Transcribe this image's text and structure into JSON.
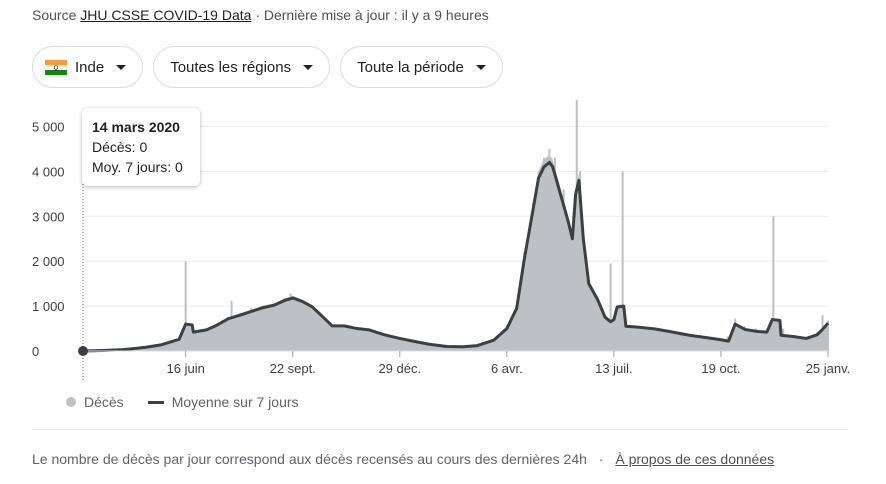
{
  "source": {
    "prefix": "Source",
    "link_text": "JHU CSSE COVID-19 Data",
    "updated": "· Dernière mise à jour : il y a 9 heures"
  },
  "filters": {
    "country": "Inde",
    "region": "Toutes les régions",
    "period": "Toute la période"
  },
  "tooltip": {
    "date": "14 mars 2020",
    "deaths": "Décès: 0",
    "avg": "Moy. 7 jours: 0"
  },
  "legend": {
    "bars": "Décès",
    "line": "Moyenne sur 7 jours"
  },
  "footer": {
    "note": "Le nombre de décès par jour correspond aux décès recensés au cours des dernières 24h",
    "separator": "·",
    "about_link": "À propos de ces données"
  },
  "colors": {
    "area": "#bdc1c6",
    "line": "#3c4043",
    "grid": "#ebebeb",
    "text": "#202124"
  },
  "chart_data": {
    "type": "area",
    "title": "",
    "xlabel": "",
    "ylabel": "",
    "ylim": [
      0,
      5500
    ],
    "y_ticks": [
      0,
      1000,
      2000,
      3000,
      4000,
      5000
    ],
    "y_tick_labels": [
      "0",
      "1 000",
      "2 000",
      "3 000",
      "4 000",
      "5 000"
    ],
    "x_ticks": [
      {
        "date": "2020-06-16",
        "label": "16 juin"
      },
      {
        "date": "2020-09-22",
        "label": "22 sept."
      },
      {
        "date": "2020-12-29",
        "label": "29 déc."
      },
      {
        "date": "2021-04-06",
        "label": "6 avr."
      },
      {
        "date": "2021-07-13",
        "label": "13 juil."
      },
      {
        "date": "2021-10-19",
        "label": "19 oct."
      },
      {
        "date": "2022-01-25",
        "label": "25 janv."
      }
    ],
    "x_start": "2020-03-14",
    "x_end": "2022-01-25",
    "grid": true,
    "legend_position": "bottom-left",
    "highlight": {
      "date": "2020-03-14",
      "deaths": 0,
      "avg": 0
    },
    "series": [
      {
        "name": "Décès",
        "kind": "bars",
        "points": [
          [
            "2020-03-14",
            0
          ],
          [
            "2020-04-01",
            15
          ],
          [
            "2020-04-20",
            40
          ],
          [
            "2020-05-10",
            90
          ],
          [
            "2020-05-25",
            150
          ],
          [
            "2020-06-10",
            320
          ],
          [
            "2020-06-16",
            2000
          ],
          [
            "2020-06-17",
            350
          ],
          [
            "2020-07-01",
            420
          ],
          [
            "2020-07-15",
            620
          ],
          [
            "2020-07-25",
            760
          ],
          [
            "2020-07-28",
            1120
          ],
          [
            "2020-08-05",
            850
          ],
          [
            "2020-08-15",
            960
          ],
          [
            "2020-08-25",
            1000
          ],
          [
            "2020-09-05",
            1080
          ],
          [
            "2020-09-15",
            1180
          ],
          [
            "2020-09-20",
            1280
          ],
          [
            "2020-09-28",
            1150
          ],
          [
            "2020-10-08",
            1020
          ],
          [
            "2020-10-18",
            820
          ],
          [
            "2020-10-28",
            580
          ],
          [
            "2020-11-08",
            560
          ],
          [
            "2020-11-20",
            530
          ],
          [
            "2020-12-01",
            500
          ],
          [
            "2020-12-15",
            380
          ],
          [
            "2020-12-29",
            300
          ],
          [
            "2021-01-10",
            240
          ],
          [
            "2021-01-25",
            170
          ],
          [
            "2021-02-10",
            110
          ],
          [
            "2021-02-25",
            100
          ],
          [
            "2021-03-10",
            120
          ],
          [
            "2021-03-25",
            250
          ],
          [
            "2021-04-06",
            520
          ],
          [
            "2021-04-15",
            1000
          ],
          [
            "2021-04-22",
            2200
          ],
          [
            "2021-04-30",
            3300
          ],
          [
            "2021-05-05",
            4000
          ],
          [
            "2021-05-10",
            4300
          ],
          [
            "2021-05-15",
            4500
          ],
          [
            "2021-05-20",
            4300
          ],
          [
            "2021-05-28",
            3600
          ],
          [
            "2021-06-05",
            2500
          ],
          [
            "2021-06-09",
            5700
          ],
          [
            "2021-06-10",
            3800
          ],
          [
            "2021-06-12",
            4000
          ],
          [
            "2021-06-18",
            2000
          ],
          [
            "2021-06-25",
            1300
          ],
          [
            "2021-07-02",
            900
          ],
          [
            "2021-07-08",
            700
          ],
          [
            "2021-07-10",
            1950
          ],
          [
            "2021-07-14",
            650
          ],
          [
            "2021-07-21",
            4000
          ],
          [
            "2021-07-22",
            600
          ],
          [
            "2021-08-01",
            550
          ],
          [
            "2021-08-15",
            500
          ],
          [
            "2021-09-01",
            470
          ],
          [
            "2021-09-15",
            380
          ],
          [
            "2021-10-01",
            300
          ],
          [
            "2021-10-15",
            260
          ],
          [
            "2021-10-25",
            320
          ],
          [
            "2021-11-01",
            720
          ],
          [
            "2021-11-10",
            550
          ],
          [
            "2021-11-20",
            500
          ],
          [
            "2021-11-30",
            420
          ],
          [
            "2021-12-06",
            3000
          ],
          [
            "2021-12-07",
            500
          ],
          [
            "2021-12-15",
            500
          ],
          [
            "2021-12-25",
            350
          ],
          [
            "2022-01-05",
            300
          ],
          [
            "2022-01-15",
            420
          ],
          [
            "2022-01-20",
            800
          ],
          [
            "2022-01-25",
            680
          ]
        ]
      },
      {
        "name": "Moyenne sur 7 jours",
        "kind": "line",
        "points": [
          [
            "2020-03-14",
            0
          ],
          [
            "2020-04-01",
            10
          ],
          [
            "2020-04-20",
            30
          ],
          [
            "2020-05-10",
            80
          ],
          [
            "2020-05-25",
            140
          ],
          [
            "2020-06-10",
            260
          ],
          [
            "2020-06-16",
            600
          ],
          [
            "2020-06-22",
            580
          ],
          [
            "2020-06-23",
            420
          ],
          [
            "2020-07-05",
            470
          ],
          [
            "2020-07-15",
            580
          ],
          [
            "2020-07-25",
            720
          ],
          [
            "2020-08-05",
            800
          ],
          [
            "2020-08-15",
            880
          ],
          [
            "2020-08-25",
            960
          ],
          [
            "2020-09-05",
            1020
          ],
          [
            "2020-09-15",
            1130
          ],
          [
            "2020-09-22",
            1180
          ],
          [
            "2020-10-01",
            1100
          ],
          [
            "2020-10-10",
            980
          ],
          [
            "2020-10-20",
            750
          ],
          [
            "2020-10-28",
            560
          ],
          [
            "2020-11-08",
            560
          ],
          [
            "2020-11-20",
            500
          ],
          [
            "2020-12-01",
            470
          ],
          [
            "2020-12-15",
            360
          ],
          [
            "2020-12-29",
            280
          ],
          [
            "2021-01-10",
            220
          ],
          [
            "2021-01-25",
            150
          ],
          [
            "2021-02-10",
            100
          ],
          [
            "2021-02-25",
            95
          ],
          [
            "2021-03-10",
            120
          ],
          [
            "2021-03-25",
            240
          ],
          [
            "2021-04-06",
            500
          ],
          [
            "2021-04-15",
            950
          ],
          [
            "2021-04-22",
            2050
          ],
          [
            "2021-04-30",
            3150
          ],
          [
            "2021-05-05",
            3850
          ],
          [
            "2021-05-10",
            4100
          ],
          [
            "2021-05-15",
            4200
          ],
          [
            "2021-05-18",
            4100
          ],
          [
            "2021-05-25",
            3500
          ],
          [
            "2021-06-01",
            2900
          ],
          [
            "2021-06-05",
            2500
          ],
          [
            "2021-06-08",
            3500
          ],
          [
            "2021-06-11",
            3800
          ],
          [
            "2021-06-15",
            2500
          ],
          [
            "2021-06-20",
            1500
          ],
          [
            "2021-06-28",
            1150
          ],
          [
            "2021-07-05",
            750
          ],
          [
            "2021-07-10",
            650
          ],
          [
            "2021-07-13",
            700
          ],
          [
            "2021-07-16",
            980
          ],
          [
            "2021-07-22",
            1000
          ],
          [
            "2021-07-24",
            550
          ],
          [
            "2021-08-05",
            530
          ],
          [
            "2021-08-20",
            490
          ],
          [
            "2021-09-05",
            420
          ],
          [
            "2021-09-20",
            350
          ],
          [
            "2021-10-05",
            300
          ],
          [
            "2021-10-19",
            250
          ],
          [
            "2021-10-26",
            220
          ],
          [
            "2021-11-01",
            600
          ],
          [
            "2021-11-10",
            480
          ],
          [
            "2021-11-20",
            440
          ],
          [
            "2021-11-30",
            420
          ],
          [
            "2021-12-05",
            700
          ],
          [
            "2021-12-12",
            680
          ],
          [
            "2021-12-13",
            350
          ],
          [
            "2021-12-25",
            320
          ],
          [
            "2022-01-05",
            280
          ],
          [
            "2022-01-15",
            360
          ],
          [
            "2022-01-20",
            480
          ],
          [
            "2022-01-25",
            620
          ]
        ]
      }
    ]
  }
}
